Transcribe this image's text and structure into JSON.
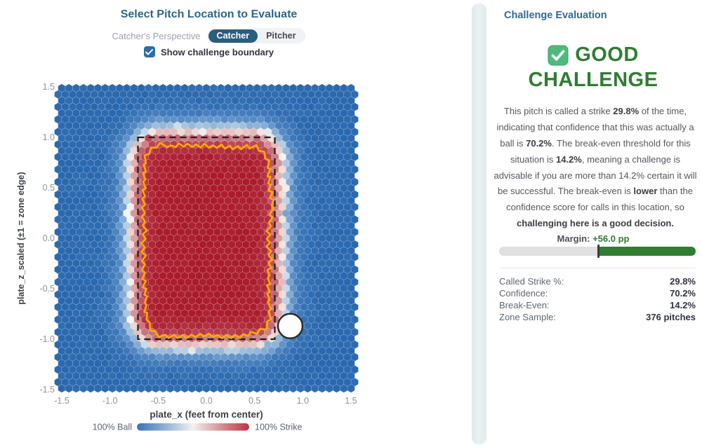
{
  "left_panel": {
    "title": "Select Pitch Location to Evaluate",
    "perspective_label": "Catcher's Perspective",
    "toggle": {
      "options": [
        "Catcher",
        "Pitcher"
      ],
      "selected": "Catcher"
    },
    "checkbox_label": "Show challenge boundary",
    "checkbox_checked": true
  },
  "chart_data": {
    "type": "heatmap",
    "subtype": "hexbin_strike_probability",
    "xlabel": "plate_x (feet from center)",
    "ylabel": "plate_z_scaled (±1 = zone edge)",
    "x_ticks": [
      "-1.5",
      "-1.0",
      "-0.5",
      "0.0",
      "0.5",
      "1.0",
      "1.5"
    ],
    "y_ticks": [
      "1.5",
      "1.0",
      "0.5",
      "0.0",
      "-0.5",
      "-1.0",
      "-1.5"
    ],
    "xlim": [
      -1.5,
      1.5
    ],
    "ylim": [
      -1.5,
      1.5
    ],
    "hex_size_px": 10.3,
    "colormap": {
      "low": "#2a68af",
      "mid": "#f6f5f3",
      "high": "#aa1b2c",
      "low_means": "100% Ball",
      "high_means": "100% Strike"
    },
    "zone_rect": {
      "x_min": -0.71,
      "x_max": 0.71,
      "y_min": -1.0,
      "y_max": 1.0,
      "style": "black dashed"
    },
    "challenge_boundary": {
      "style": "orange jagged contour",
      "x_min": -0.62,
      "x_max": 0.67,
      "y_min": -0.94,
      "y_max": 0.93
    },
    "selected_pitch": {
      "x": 0.87,
      "y": -0.87,
      "marker": "white circle",
      "called_strike_pct": 29.8
    },
    "field_model": {
      "inside_zone_strike_pct": 97,
      "outside_strike_pct": 2,
      "transition_band_data_units": 0.17
    },
    "legend": {
      "left_label": "100% Ball",
      "right_label": "100% Strike"
    }
  },
  "right_panel": {
    "title": "Challenge Evaluation",
    "verdict": {
      "icon": "green-check",
      "line1": "GOOD",
      "line2": "CHALLENGE"
    },
    "paragraph_segments": [
      {
        "t": "This pitch is called a strike "
      },
      {
        "t": "29.8%",
        "b": true
      },
      {
        "t": " of the time, indicating that confidence that this was actually a ball is "
      },
      {
        "t": "70.2%",
        "b": true
      },
      {
        "t": ". The break-even threshold for this situation is "
      },
      {
        "t": "14.2%",
        "b": true
      },
      {
        "t": ", meaning a challenge is advisable if you are more than 14.2% certain it will be successful. The break-even is "
      },
      {
        "t": "lower",
        "b": true
      },
      {
        "t": " than the confidence score for calls in this location, so "
      },
      {
        "t": "challenging here is a good decision.",
        "b": true
      }
    ],
    "margin": {
      "label": "Margin:",
      "value": "+56.0 pp"
    },
    "margin_bar": {
      "split_pct": 50.4,
      "track_color": "#e0e0e0",
      "fill_color": "#2e7d32",
      "marker_color": "#3a3a3a"
    },
    "stats": [
      {
        "label": "Called Strike %:",
        "value": "29.8%"
      },
      {
        "label": "Confidence:",
        "value": "70.2%"
      },
      {
        "label": "Break-Even:",
        "value": "14.2%"
      },
      {
        "label": "Zone Sample:",
        "value": "376 pitches"
      }
    ]
  },
  "colors": {
    "title_blue": "#2f6687",
    "panel_title_blue": "#35688c",
    "toggle_selected_bg": "#2b5d7d",
    "checkbox_blue": "#2d6da8",
    "good_green": "#2e7d32",
    "check_icon_green": "#4fba7c",
    "boundary_orange": "#ffaa00",
    "tick_gray": "#8b94a1"
  }
}
